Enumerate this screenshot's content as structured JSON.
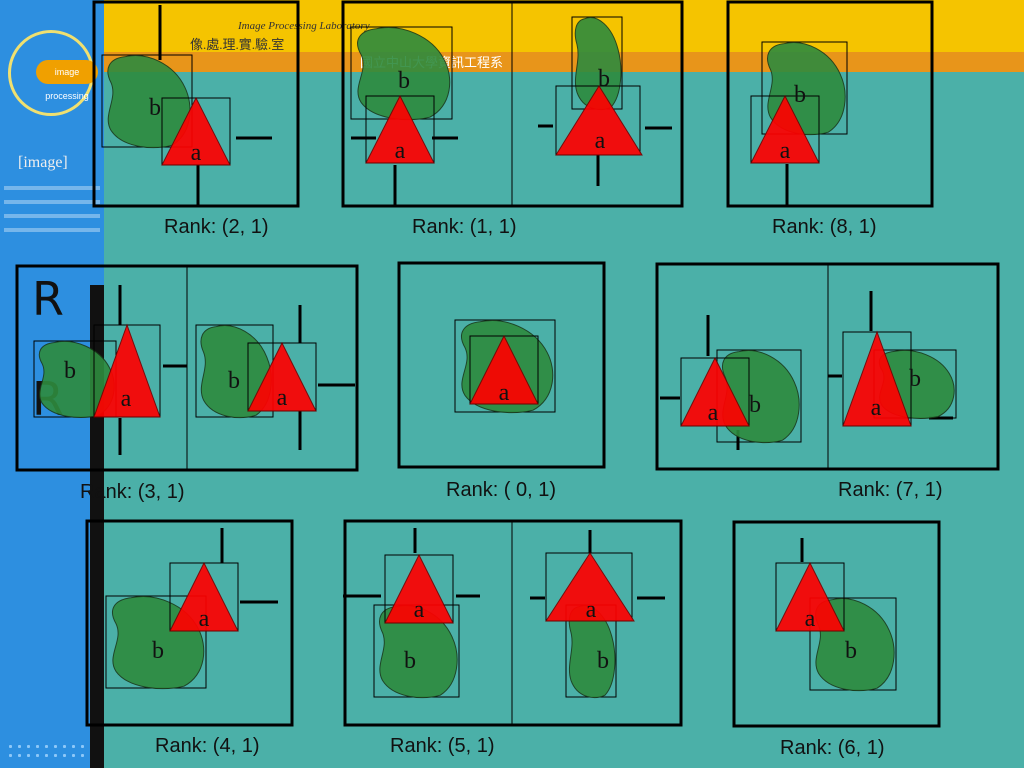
{
  "header": {
    "lab_title": "Image Processing Laboratory",
    "lab_name_cn": "像.處.理.實.驗.室",
    "university_cn": "國立中山大學資訊工程系",
    "logo_text": "image processing"
  },
  "sidebar": {
    "tag": "[image]"
  },
  "labels": {
    "a": "a",
    "b": "b"
  },
  "panels": [
    {
      "rank": "Rank: (2, 1)"
    },
    {
      "rank": "Rank: (1, 1)"
    },
    {
      "rank": "Rank: (8, 1)"
    },
    {
      "rank": "Rank: (3, 1)"
    },
    {
      "rank": "Rank: ( 0, 1)"
    },
    {
      "rank": "Rank: (7, 1)"
    },
    {
      "rank": "Rank: (4, 1)"
    },
    {
      "rank": "Rank: (5, 1)"
    },
    {
      "rank": "Rank: (6, 1)"
    }
  ],
  "colors": {
    "background": "#4bb0a8",
    "triangle": "#ff0000",
    "blob": "#2e8b3e",
    "overlap": "#a0401a"
  }
}
